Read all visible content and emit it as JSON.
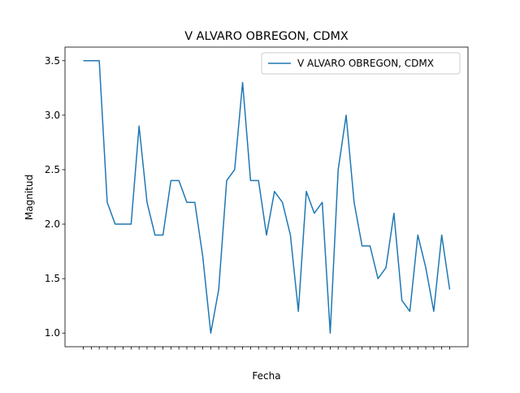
{
  "chart_data": {
    "type": "line",
    "title": "V ALVARO OBREGON, CDMX",
    "x_label": "Fecha",
    "y_label": "Magnitud",
    "categories": [
      null,
      null,
      null,
      null,
      null,
      null,
      null,
      null,
      null,
      null,
      null,
      null,
      null,
      null,
      null,
      null,
      null,
      null,
      null,
      null,
      null,
      null,
      null,
      null,
      null,
      null,
      null,
      null,
      null,
      null,
      null,
      null,
      null,
      null,
      null,
      null,
      null,
      null,
      null,
      null,
      null,
      null,
      null,
      null,
      null,
      null,
      null
    ],
    "series": [
      {
        "name": "V ALVARO OBREGON, CDMX",
        "color": "#1f77b4",
        "values": [
          3.5,
          3.5,
          3.5,
          2.2,
          2.0,
          2.0,
          2.0,
          2.9,
          2.2,
          1.9,
          1.9,
          2.4,
          2.4,
          2.2,
          2.2,
          1.7,
          1.0,
          1.4,
          2.4,
          2.5,
          3.3,
          2.4,
          2.4,
          1.9,
          2.3,
          2.2,
          1.9,
          1.2,
          2.3,
          2.1,
          2.2,
          1.0,
          2.5,
          3.0,
          2.2,
          1.8,
          1.8,
          1.5,
          1.6,
          2.1,
          1.3,
          1.2,
          1.9,
          1.6,
          1.2,
          1.9,
          1.4
        ]
      }
    ],
    "ylim": [
      0.875,
      3.625
    ],
    "yticks": [
      {
        "value": 1.0,
        "label": "1.0"
      },
      {
        "value": 1.5,
        "label": "1.5"
      },
      {
        "value": 2.0,
        "label": "2.0"
      },
      {
        "value": 2.5,
        "label": "2.5"
      },
      {
        "value": 3.0,
        "label": "3.0"
      },
      {
        "value": 3.5,
        "label": "3.5"
      }
    ],
    "legend": "upper right"
  }
}
